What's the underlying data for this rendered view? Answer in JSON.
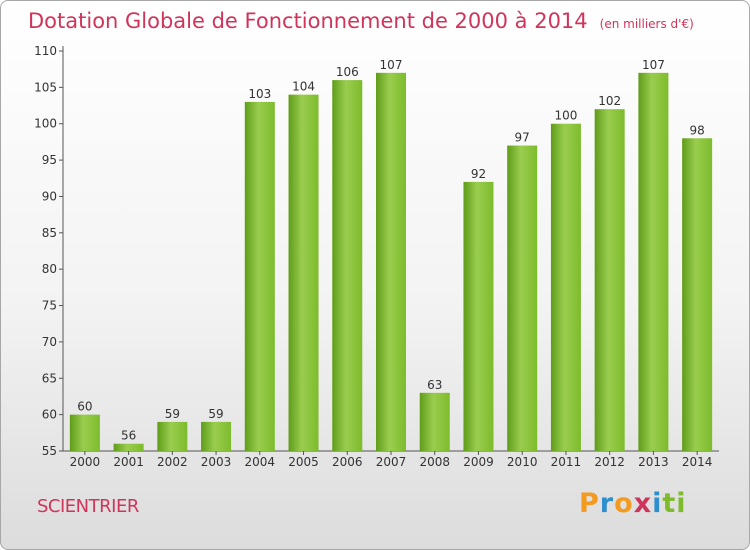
{
  "chart_data": {
    "type": "bar",
    "title": "Dotation Globale de Fonctionnement de 2000 à 2014",
    "unit_note": "(en milliers d'€)",
    "categories": [
      "2000",
      "2001",
      "2002",
      "2003",
      "2004",
      "2005",
      "2006",
      "2007",
      "2008",
      "2009",
      "2010",
      "2011",
      "2012",
      "2013",
      "2014"
    ],
    "values": [
      60,
      56,
      59,
      59,
      103,
      104,
      106,
      107,
      63,
      92,
      97,
      100,
      102,
      107,
      98
    ],
    "ylim": [
      55,
      110
    ],
    "yticks": [
      55,
      60,
      65,
      70,
      75,
      80,
      85,
      90,
      95,
      100,
      105,
      110
    ],
    "grid": false,
    "bar_color": "#7dbb2c",
    "bar_color_light": "#9acd4f",
    "bar_color_dark": "#5f9c1a"
  },
  "footer": {
    "commune": "SCIENTRIER",
    "logo_letters": [
      {
        "ch": "P",
        "color": "#f39a1f"
      },
      {
        "ch": "r",
        "color": "#2e8fd0"
      },
      {
        "ch": "o",
        "color": "#f39a1f"
      },
      {
        "ch": "x",
        "color": "#d0345a"
      },
      {
        "ch": "i",
        "color": "#2e8fd0"
      },
      {
        "ch": "t",
        "color": "#7dbb2c"
      },
      {
        "ch": "i",
        "color": "#7dbb2c"
      }
    ]
  },
  "colors": {
    "title": "#d0345a",
    "axis": "#555555",
    "text": "#333333"
  }
}
